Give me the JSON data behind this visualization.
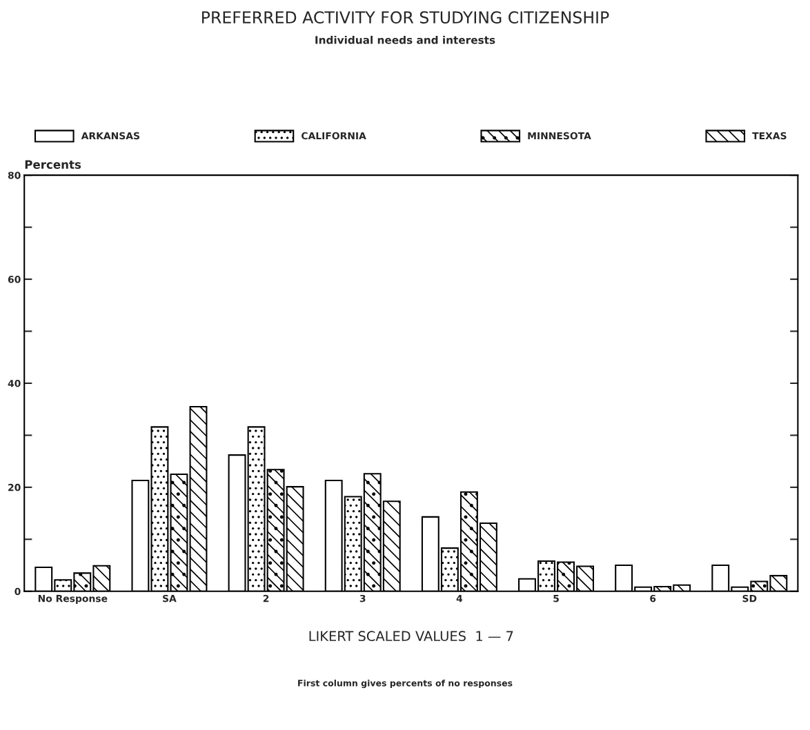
{
  "chart_data": {
    "type": "bar",
    "title": "PREFERRED ACTIVITY FOR STUDYING CITIZENSHIP",
    "subtitle": "Individual needs and interests",
    "xlabel": "LIKERT SCALED VALUES  1 — 7",
    "ylabel": "Percents",
    "annotations": [
      "First column gives percents of no responses"
    ],
    "categories": [
      "No Response",
      "SA",
      "2",
      "3",
      "4",
      "5",
      "6",
      "SD"
    ],
    "series": [
      {
        "name": "ARKANSAS",
        "color": "#000000",
        "values": [
          4.6,
          21.3,
          26.2,
          21.3,
          14.3,
          2.4,
          5.0,
          5.0
        ]
      },
      {
        "name": "CALIFORNIA",
        "color": "#000000",
        "values": [
          2.2,
          31.6,
          31.6,
          18.2,
          8.3,
          5.8,
          0.8,
          0.8
        ]
      },
      {
        "name": "MINNESOTA",
        "color": "#000000",
        "values": [
          3.5,
          22.5,
          23.4,
          22.6,
          19.1,
          5.6,
          0.9,
          1.9
        ]
      },
      {
        "name": "TEXAS",
        "color": "#000000",
        "values": [
          4.9,
          35.5,
          20.1,
          17.3,
          13.1,
          4.8,
          1.2,
          3.0
        ]
      }
    ],
    "ylim": [
      0,
      80
    ],
    "yticks": [
      0,
      {
        "value": 10,
        "label": null
      },
      20,
      {
        "value": 30,
        "label": null
      },
      40,
      {
        "value": 50,
        "label": null
      },
      60,
      {
        "value": 70,
        "label": null
      },
      80
    ],
    "grid": false,
    "legend": "top"
  }
}
